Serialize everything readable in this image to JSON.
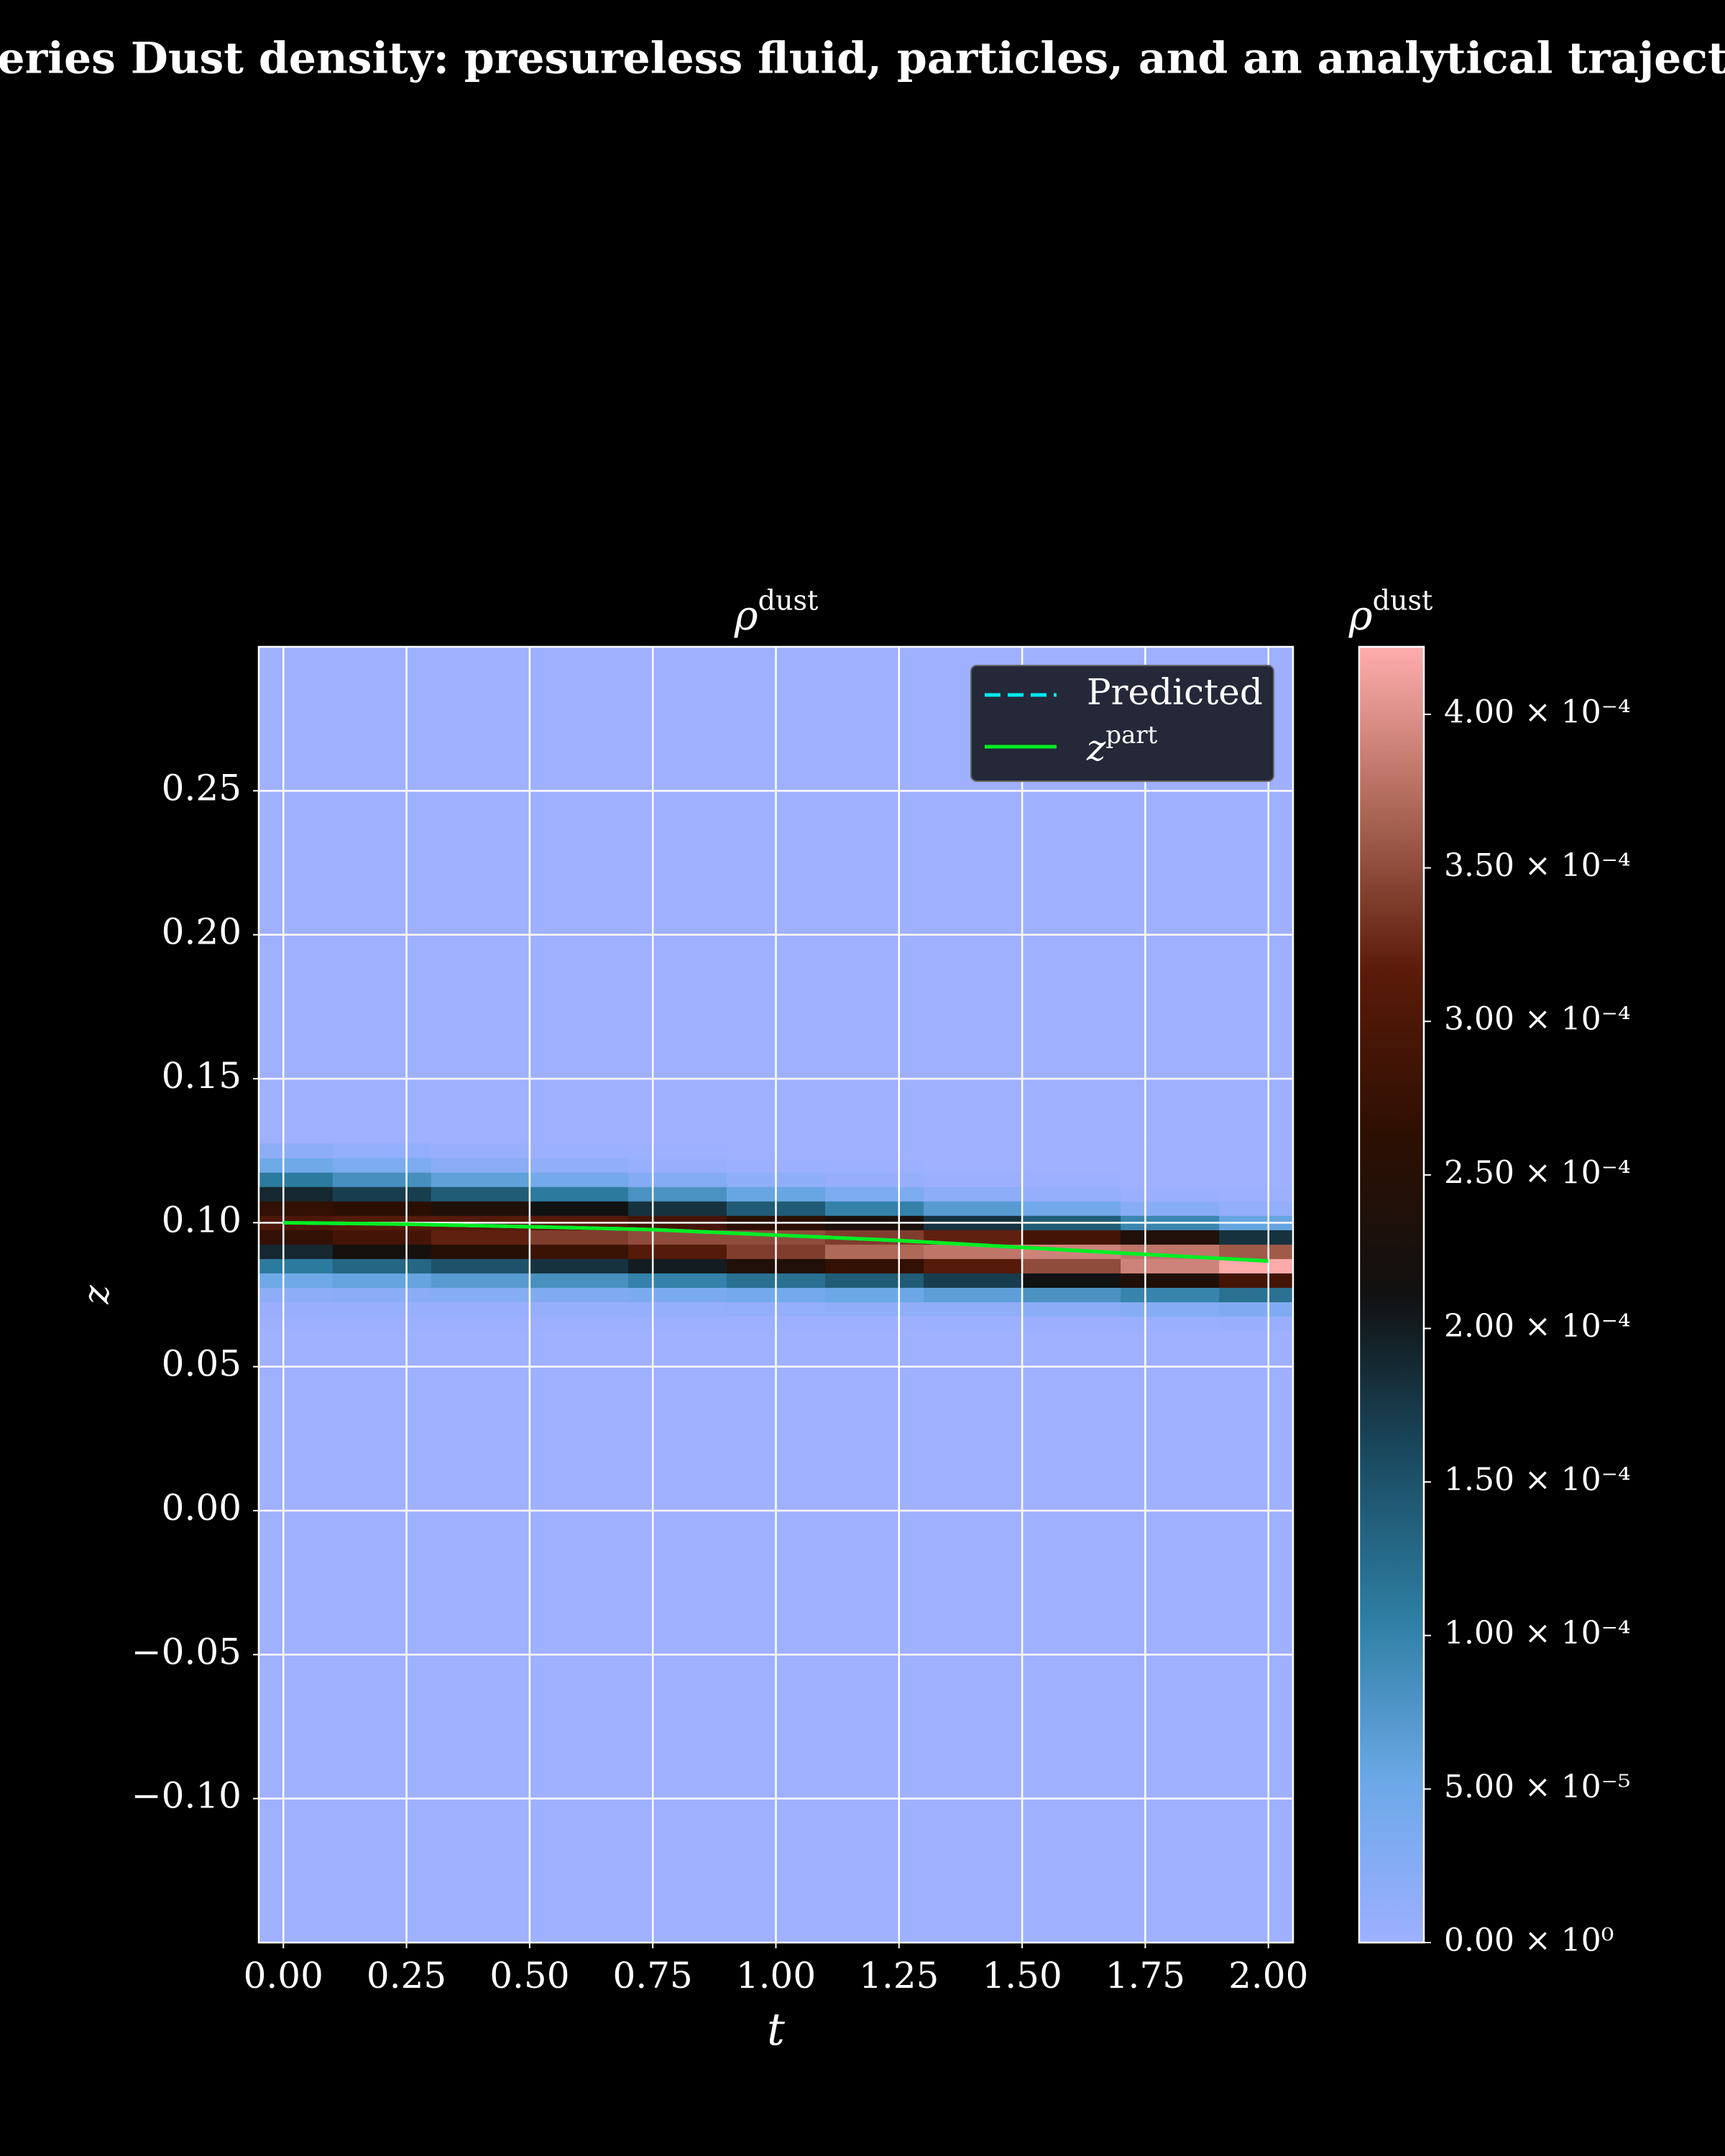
{
  "chart_data": {
    "type": "heatmap",
    "title": "eries Dust density: presureless fluid, particles, and an analytical traject",
    "plot_title": "ρ",
    "plot_title_sup": "dust",
    "xlabel": "t",
    "ylabel": "z",
    "x": [
      0,
      0.2,
      0.4,
      0.6,
      0.8,
      1.0,
      1.2,
      1.4,
      1.6,
      1.8,
      2.0
    ],
    "y": [
      0.065,
      0.07,
      0.075,
      0.08,
      0.085,
      0.09,
      0.095,
      0.1,
      0.105,
      0.11,
      0.115,
      0.12,
      0.125
    ],
    "values": [
      [
        1.2e-06,
        5e-06,
        1.8e-05,
        4.9e-05,
        0.00011,
        0.00019,
        0.00027,
        0.0003,
        0.00027,
        0.00019,
        0.00011,
        4.9e-05,
        1.8e-05
      ],
      [
        1.3e-06,
        5.9e-06,
        2.1e-05,
        5.8e-05,
        0.00013,
        0.00022,
        0.00029,
        0.00031,
        0.00026,
        0.00017,
        8.4e-05,
        3.4e-05,
        1.1e-05
      ],
      [
        1.5e-06,
        6.8e-06,
        2.5e-05,
        6.9e-05,
        0.00015,
        0.00025,
        0.00032,
        0.00031,
        0.00024,
        0.00014,
        6.2e-05,
        2.1e-05,
        5.8e-06
      ],
      [
        1.6e-06,
        8e-06,
        3e-05,
        8.3e-05,
        0.00018,
        0.00028,
        0.00034,
        0.00031,
        0.00021,
        0.00011,
        4.3e-05,
        1.3e-05,
        2.8e-06
      ],
      [
        1.9e-06,
        9.5e-06,
        3.6e-05,
        0.0001,
        0.0002,
        0.00031,
        0.00035,
        0.00029,
        0.00018,
        8.1e-05,
        2.7e-05,
        6.7e-06,
        1.2e-06
      ],
      [
        2.2e-06,
        1.1e-05,
        4.3e-05,
        0.00012,
        0.00024,
        0.00034,
        0.00035,
        0.00026,
        0.00014,
        5.5e-05,
        1.5e-05,
        3.1e-06,
        4.4e-07
      ],
      [
        2.5e-06,
        1.4e-05,
        5.2e-05,
        0.00014,
        0.00027,
        0.00037,
        0.00034,
        0.00023,
        0.0001,
        3.4e-05,
        7.4e-06,
        1.2e-06,
        1.5e-07
      ],
      [
        2.8e-06,
        1.6e-05,
        6.4e-05,
        0.00017,
        0.00031,
        0.00038,
        0.00032,
        0.00018,
        7e-05,
        1.8e-05,
        3.3e-06,
        4.1e-07,
        4e-08
      ],
      [
        3.3e-06,
        2e-05,
        8e-05,
        0.00021,
        0.00035,
        0.00039,
        0.00029,
        0.00014,
        4.4e-05,
        9e-06,
        1.2e-06,
        1e-07,
        2e-08
      ],
      [
        3.9e-06,
        2.5e-05,
        9.8e-05,
        0.00024,
        0.00039,
        0.00038,
        0.00024,
        9.5e-05,
        2.3e-05,
        3.7e-06,
        3.6e-07,
        2e-08,
        0
      ],
      [
        4.7e-06,
        3.1e-05,
        0.00012,
        0.00029,
        0.00042,
        0.00036,
        0.00018,
        5.7e-05,
        1.1e-05,
        1.2e-06,
        8e-08,
        0,
        0
      ]
    ],
    "colormap": [
      "#9eb0ff",
      "#6ba8e6",
      "#2e7ea3",
      "#1a4a60",
      "#111111",
      "#2d0f02",
      "#5b1b0a",
      "#ad6858",
      "#ffadad"
    ],
    "clim": [
      0,
      0.000422
    ],
    "colorbar_title": "ρ",
    "colorbar_title_sup": "dust",
    "colorbar_ticks": [
      {
        "value": 0,
        "label": "0.00 × 10⁰"
      },
      {
        "value": 5e-05,
        "label": "5.00 × 10⁻⁵"
      },
      {
        "value": 0.0001,
        "label": "1.00 × 10⁻⁴"
      },
      {
        "value": 0.00015,
        "label": "1.50 × 10⁻⁴"
      },
      {
        "value": 0.0002,
        "label": "2.00 × 10⁻⁴"
      },
      {
        "value": 0.00025,
        "label": "2.50 × 10⁻⁴"
      },
      {
        "value": 0.0003,
        "label": "3.00 × 10⁻⁴"
      },
      {
        "value": 0.00035,
        "label": "3.50 × 10⁻⁴"
      },
      {
        "value": 0.0004,
        "label": "4.00 × 10⁻⁴"
      }
    ],
    "series": [
      {
        "name": "Predicted",
        "color": "#00e8f0",
        "dashed": true,
        "x": [
          0,
          0.25,
          0.5,
          0.75,
          1.0,
          1.25,
          1.5,
          1.75,
          2.0
        ],
        "values": [
          0.1,
          0.0995,
          0.0986,
          0.0976,
          0.0957,
          0.0938,
          0.0914,
          0.089,
          0.0867
        ]
      },
      {
        "name": "z",
        "name_sup": "part",
        "color": "#00ee22",
        "dashed": false,
        "x": [
          0,
          0.25,
          0.5,
          0.75,
          1.0,
          1.25,
          1.5,
          1.75,
          2.0
        ],
        "values": [
          0.1,
          0.0995,
          0.0986,
          0.0976,
          0.0957,
          0.0938,
          0.0914,
          0.089,
          0.0867
        ]
      }
    ],
    "xlim": [
      -0.05,
      2.05
    ],
    "ylim": [
      -0.15,
      0.3
    ],
    "xticks": [
      {
        "value": 0,
        "label": "0.00"
      },
      0.25,
      {
        "value": 0.5,
        "label": "0.50"
      },
      0.75,
      {
        "value": 1,
        "label": "1.00"
      },
      1.25,
      {
        "value": 1.5,
        "label": "1.50"
      },
      1.75,
      {
        "value": 2,
        "label": "2.00"
      }
    ],
    "yticks": [
      {
        "value": -0.1,
        "label": "−0.10"
      },
      {
        "value": -0.05,
        "label": "−0.05"
      },
      {
        "value": 0,
        "label": "0.00"
      },
      0.05,
      {
        "value": 0.1,
        "label": "0.10"
      },
      0.15,
      {
        "value": 0.2,
        "label": "0.20"
      },
      0.25
    ],
    "grid": true,
    "legend": "upper right"
  }
}
